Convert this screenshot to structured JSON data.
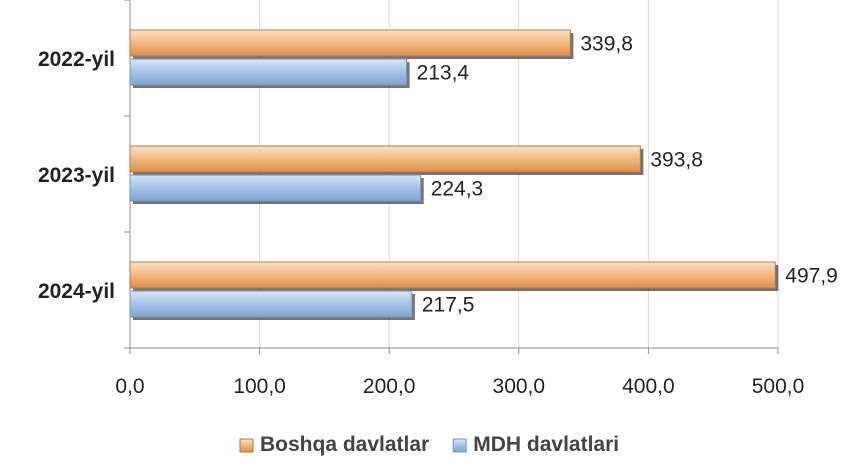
{
  "chart_data": {
    "type": "bar",
    "orientation": "horizontal",
    "categories": [
      "2022-yil",
      "2023-yil",
      "2024-yil"
    ],
    "series": [
      {
        "name": "Boshqa davlatlar",
        "values": [
          339.8,
          393.8,
          497.9
        ],
        "labels": [
          "339,8",
          "393,8",
          "497,9"
        ],
        "color": "#F5C08F"
      },
      {
        "name": "MDH davlatlari",
        "values": [
          213.4,
          224.3,
          217.5
        ],
        "labels": [
          "213,4",
          "224,3",
          "217,5"
        ],
        "color": "#A9C7EA"
      }
    ],
    "xlim": [
      0,
      500
    ],
    "xticks": [
      0,
      100,
      200,
      300,
      400,
      500
    ],
    "xtick_labels": [
      "0,0",
      "100,0",
      "200,0",
      "300,0",
      "400,0",
      "500,0"
    ],
    "grid": "vertical",
    "legend": "bottom"
  }
}
